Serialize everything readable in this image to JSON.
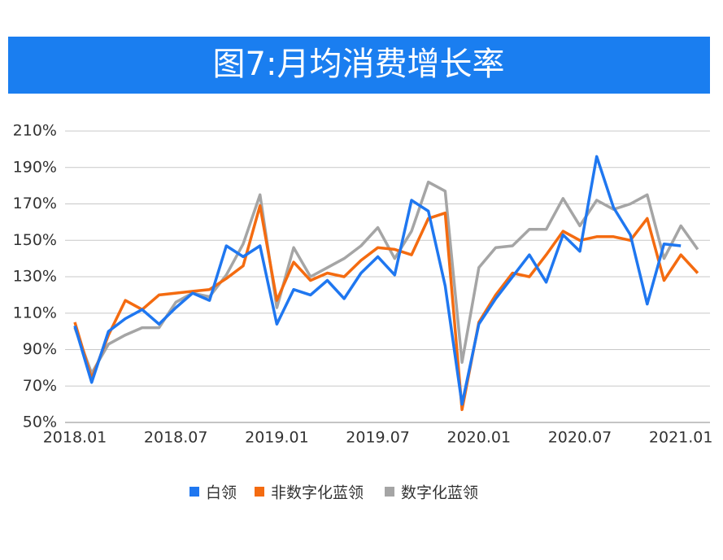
{
  "chart_data": {
    "type": "line",
    "title": "图7:月均消费增长率",
    "categories": [
      "2018.01",
      null,
      null,
      null,
      null,
      null,
      "2018.07",
      null,
      null,
      null,
      null,
      null,
      "2019.01",
      null,
      null,
      null,
      null,
      null,
      "2019.07",
      null,
      null,
      null,
      null,
      null,
      "2020.01",
      null,
      null,
      null,
      null,
      null,
      "2020.07",
      null,
      null,
      null,
      null,
      null,
      "2021.01",
      null
    ],
    "series": [
      {
        "name": "白领",
        "color": "#1f77f0",
        "values": [
          103,
          72,
          100,
          107,
          112,
          104,
          113,
          121,
          117,
          147,
          141,
          147,
          104,
          123,
          120,
          128,
          118,
          132,
          141,
          131,
          172,
          166,
          125,
          60,
          104,
          118,
          130,
          142,
          127,
          153,
          144,
          196,
          168,
          153,
          115,
          148,
          147,
          null
        ]
      },
      {
        "name": "非数字化蓝领",
        "color": "#f46b10",
        "values": [
          105,
          74,
          98,
          117,
          112,
          120,
          121,
          122,
          123,
          129,
          136,
          169,
          117,
          138,
          128,
          132,
          130,
          139,
          146,
          145,
          142,
          162,
          165,
          57,
          105,
          120,
          132,
          130,
          142,
          155,
          150,
          152,
          152,
          150,
          162,
          128,
          142,
          132
        ]
      },
      {
        "name": "数字化蓝领",
        "color": "#a5a5a5",
        "values": [
          102,
          77,
          93,
          98,
          102,
          102,
          116,
          121,
          119,
          131,
          148,
          175,
          113,
          146,
          130,
          135,
          140,
          147,
          157,
          140,
          155,
          182,
          177,
          83,
          135,
          146,
          147,
          156,
          156,
          173,
          158,
          172,
          167,
          170,
          175,
          140,
          158,
          145
        ]
      }
    ],
    "ylim": [
      50,
      210
    ],
    "yticks": [
      {
        "value": 50,
        "label": "50%"
      },
      {
        "value": 70,
        "label": "70%"
      },
      {
        "value": 90,
        "label": "90%"
      },
      {
        "value": 110,
        "label": "110%"
      },
      {
        "value": 130,
        "label": "130%"
      },
      {
        "value": 150,
        "label": "150%"
      },
      {
        "value": 170,
        "label": "170%"
      },
      {
        "value": 190,
        "label": "190%"
      },
      {
        "value": 210,
        "label": "210%"
      }
    ],
    "grid": true,
    "legend": "bottom"
  }
}
